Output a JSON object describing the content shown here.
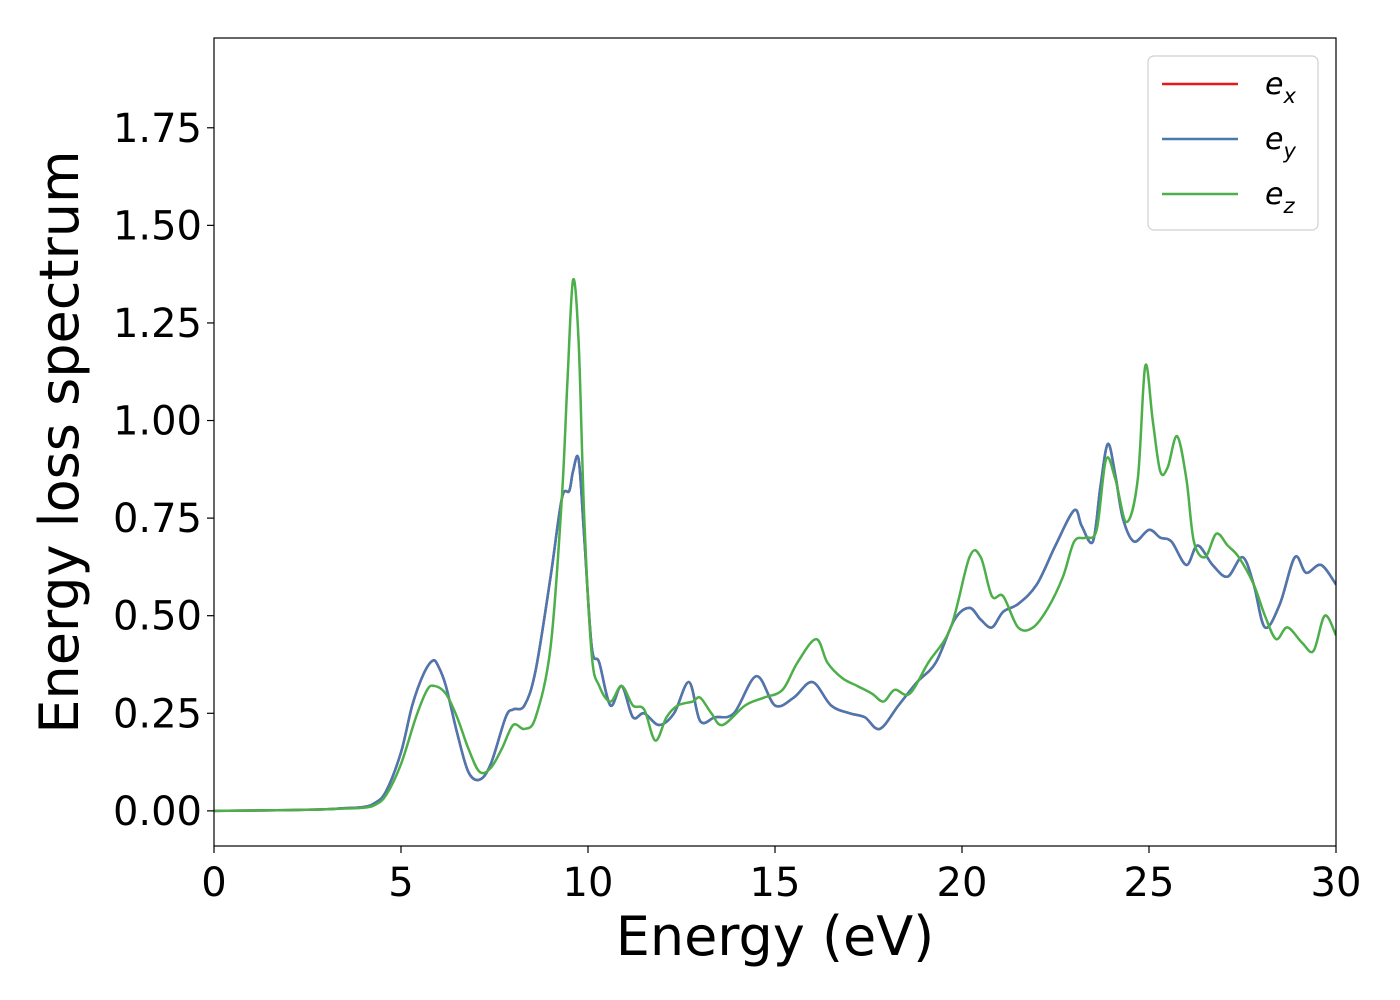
{
  "chart_data": {
    "type": "line",
    "title": "",
    "xlabel": "Energy (eV)",
    "ylabel": "Energy loss spectrum",
    "xlim": [
      0,
      30
    ],
    "ylim": [
      -0.09,
      1.98
    ],
    "xticks": [
      0,
      5,
      10,
      15,
      20,
      25,
      30
    ],
    "xtick_labels": [
      "0",
      "5",
      "10",
      "15",
      "20",
      "25",
      "30"
    ],
    "yticks": [
      0.0,
      0.25,
      0.5,
      0.75,
      1.0,
      1.25,
      1.5,
      1.75
    ],
    "ytick_labels": [
      "0.00",
      "0.25",
      "0.50",
      "0.75",
      "1.00",
      "1.25",
      "1.50",
      "1.75"
    ],
    "grid": false,
    "legend_position": "top-right",
    "series": [
      {
        "name": "e",
        "subscript": "x",
        "color": "#e41a1c",
        "x": [
          0,
          2,
          3,
          3.5,
          4,
          4.3,
          4.6,
          5.0,
          5.3,
          5.6,
          5.85,
          6.0,
          6.2,
          6.5,
          6.8,
          7.1,
          7.4,
          7.8,
          8.0,
          8.3,
          8.6,
          9.0,
          9.3,
          9.5,
          9.6,
          9.75,
          9.9,
          10.1,
          10.3,
          10.6,
          10.9,
          11.2,
          11.5,
          11.9,
          12.3,
          12.7,
          13.0,
          13.4,
          13.9,
          14.5,
          15.0,
          15.5,
          16.0,
          16.5,
          17.0,
          17.4,
          17.8,
          18.3,
          18.8,
          19.3,
          19.8,
          20.2,
          20.5,
          20.8,
          21.1,
          21.5,
          22.0,
          22.5,
          23.0,
          23.2,
          23.5,
          23.7,
          23.9,
          24.1,
          24.3,
          24.6,
          25.0,
          25.3,
          25.6,
          26.0,
          26.3,
          26.7,
          27.1,
          27.5,
          27.8,
          28.1,
          28.5,
          28.9,
          29.2,
          29.6,
          30
        ],
        "values": [
          0.0,
          0.002,
          0.004,
          0.007,
          0.01,
          0.02,
          0.05,
          0.15,
          0.27,
          0.35,
          0.385,
          0.37,
          0.32,
          0.2,
          0.1,
          0.08,
          0.12,
          0.24,
          0.26,
          0.27,
          0.36,
          0.6,
          0.8,
          0.82,
          0.87,
          0.9,
          0.7,
          0.42,
          0.38,
          0.27,
          0.32,
          0.24,
          0.25,
          0.22,
          0.25,
          0.33,
          0.23,
          0.24,
          0.25,
          0.345,
          0.27,
          0.29,
          0.33,
          0.27,
          0.25,
          0.24,
          0.21,
          0.27,
          0.33,
          0.38,
          0.49,
          0.52,
          0.49,
          0.47,
          0.51,
          0.53,
          0.58,
          0.68,
          0.77,
          0.73,
          0.69,
          0.83,
          0.94,
          0.86,
          0.75,
          0.69,
          0.72,
          0.7,
          0.69,
          0.63,
          0.68,
          0.63,
          0.6,
          0.65,
          0.58,
          0.47,
          0.53,
          0.65,
          0.61,
          0.63,
          0.58
        ]
      },
      {
        "name": "e",
        "subscript": "y",
        "color": "#4a78b0",
        "x": [
          0,
          2,
          3,
          3.5,
          4,
          4.3,
          4.6,
          5.0,
          5.3,
          5.6,
          5.85,
          6.0,
          6.2,
          6.5,
          6.8,
          7.1,
          7.4,
          7.8,
          8.0,
          8.3,
          8.6,
          9.0,
          9.3,
          9.5,
          9.6,
          9.75,
          9.9,
          10.1,
          10.3,
          10.6,
          10.9,
          11.2,
          11.5,
          11.9,
          12.3,
          12.7,
          13.0,
          13.4,
          13.9,
          14.5,
          15.0,
          15.5,
          16.0,
          16.5,
          17.0,
          17.4,
          17.8,
          18.3,
          18.8,
          19.3,
          19.8,
          20.2,
          20.5,
          20.8,
          21.1,
          21.5,
          22.0,
          22.5,
          23.0,
          23.2,
          23.5,
          23.7,
          23.9,
          24.1,
          24.3,
          24.6,
          25.0,
          25.3,
          25.6,
          26.0,
          26.3,
          26.7,
          27.1,
          27.5,
          27.8,
          28.1,
          28.5,
          28.9,
          29.2,
          29.6,
          30
        ],
        "values": [
          0.0,
          0.002,
          0.004,
          0.007,
          0.01,
          0.02,
          0.05,
          0.15,
          0.27,
          0.35,
          0.385,
          0.37,
          0.32,
          0.2,
          0.1,
          0.08,
          0.12,
          0.24,
          0.26,
          0.27,
          0.36,
          0.6,
          0.8,
          0.82,
          0.87,
          0.9,
          0.7,
          0.42,
          0.38,
          0.27,
          0.32,
          0.24,
          0.25,
          0.22,
          0.25,
          0.33,
          0.23,
          0.24,
          0.25,
          0.345,
          0.27,
          0.29,
          0.33,
          0.27,
          0.25,
          0.24,
          0.21,
          0.27,
          0.33,
          0.38,
          0.49,
          0.52,
          0.49,
          0.47,
          0.51,
          0.53,
          0.58,
          0.68,
          0.77,
          0.73,
          0.69,
          0.83,
          0.94,
          0.86,
          0.75,
          0.69,
          0.72,
          0.7,
          0.69,
          0.63,
          0.68,
          0.63,
          0.6,
          0.65,
          0.58,
          0.47,
          0.53,
          0.65,
          0.61,
          0.63,
          0.58
        ]
      },
      {
        "name": "e",
        "subscript": "z",
        "color": "#4daf4a",
        "x": [
          0,
          2,
          3,
          3.5,
          4,
          4.3,
          4.6,
          5.0,
          5.4,
          5.7,
          5.9,
          6.2,
          6.5,
          6.8,
          7.1,
          7.4,
          7.7,
          8.0,
          8.3,
          8.6,
          9.0,
          9.3,
          9.45,
          9.6,
          9.75,
          9.9,
          10.1,
          10.3,
          10.6,
          10.9,
          11.2,
          11.5,
          11.8,
          12.1,
          12.4,
          12.8,
          13.0,
          13.3,
          13.6,
          14.2,
          14.7,
          15.2,
          15.6,
          16.1,
          16.4,
          16.8,
          17.2,
          17.6,
          17.9,
          18.2,
          18.6,
          19.1,
          19.7,
          20.2,
          20.5,
          20.8,
          21.1,
          21.5,
          21.9,
          22.3,
          22.7,
          23.0,
          23.3,
          23.6,
          23.85,
          24.1,
          24.4,
          24.7,
          24.9,
          25.1,
          25.3,
          25.5,
          25.75,
          26.0,
          26.2,
          26.5,
          26.8,
          27.1,
          27.4,
          27.8,
          28.1,
          28.4,
          28.7,
          29.1,
          29.4,
          29.7,
          30
        ],
        "values": [
          0.0,
          0.002,
          0.004,
          0.006,
          0.008,
          0.015,
          0.04,
          0.12,
          0.24,
          0.31,
          0.32,
          0.3,
          0.24,
          0.16,
          0.1,
          0.11,
          0.16,
          0.22,
          0.21,
          0.24,
          0.42,
          0.8,
          1.1,
          1.36,
          1.2,
          0.75,
          0.4,
          0.32,
          0.28,
          0.32,
          0.27,
          0.26,
          0.18,
          0.24,
          0.27,
          0.28,
          0.29,
          0.25,
          0.22,
          0.27,
          0.29,
          0.31,
          0.38,
          0.44,
          0.38,
          0.34,
          0.32,
          0.3,
          0.28,
          0.31,
          0.3,
          0.38,
          0.47,
          0.65,
          0.65,
          0.55,
          0.55,
          0.47,
          0.47,
          0.52,
          0.6,
          0.69,
          0.7,
          0.72,
          0.9,
          0.85,
          0.74,
          0.85,
          1.14,
          1.0,
          0.87,
          0.88,
          0.96,
          0.85,
          0.69,
          0.65,
          0.71,
          0.68,
          0.65,
          0.58,
          0.5,
          0.44,
          0.47,
          0.43,
          0.41,
          0.5,
          0.45
        ]
      }
    ]
  }
}
